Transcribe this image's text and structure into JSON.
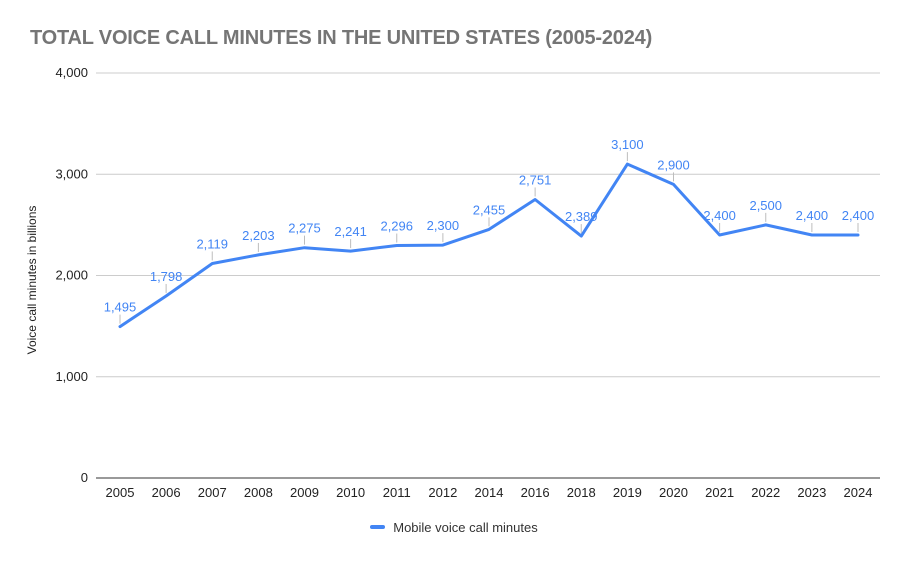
{
  "chart_data": {
    "type": "line",
    "title": "TOTAL VOICE CALL MINUTES IN THE UNITED STATES (2005-2024)",
    "xlabel": "",
    "ylabel": "Voice call minutes in billions",
    "categories": [
      "2005",
      "2006",
      "2007",
      "2008",
      "2009",
      "2010",
      "2011",
      "2012",
      "2014",
      "2016",
      "2018",
      "2019",
      "2020",
      "2021",
      "2022",
      "2023",
      "2024"
    ],
    "series": [
      {
        "name": "Mobile voice call minutes",
        "color": "#4285F4",
        "values": [
          1495,
          1798,
          2119,
          2203,
          2275,
          2241,
          2296,
          2300,
          2455,
          2751,
          2389,
          3100,
          2900,
          2400,
          2500,
          2400,
          2400
        ],
        "point_labels": [
          "1,495",
          "1,798",
          "2,119",
          "2,203",
          "2,275",
          "2,241",
          "2,296",
          "2,300",
          "2,455",
          "2,751",
          "2,389",
          "3,100",
          "2,900",
          "2,400",
          "2,500",
          "2,400",
          "2,400"
        ]
      }
    ],
    "ylim": [
      0,
      4000
    ],
    "yticks": [
      {
        "value": 0,
        "label": "0"
      },
      {
        "value": 1000,
        "label": "1,000"
      },
      {
        "value": 2000,
        "label": "2,000"
      },
      {
        "value": 3000,
        "label": "3,000"
      },
      {
        "value": 4000,
        "label": "4,000"
      }
    ],
    "grid": true,
    "legend_position": "bottom",
    "colors": {
      "series": "#4285F4",
      "data_label": "#4285F4",
      "title": "#757575",
      "axis_text": "#222222",
      "gridline": "#cccccc",
      "baseline": "#333333",
      "leader_line": "#bdbdbd",
      "legend_text": "#333333",
      "background": "#ffffff"
    }
  }
}
